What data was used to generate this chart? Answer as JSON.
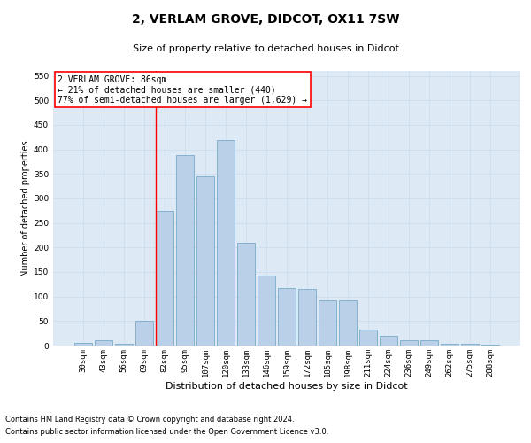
{
  "title1": "2, VERLAM GROVE, DIDCOT, OX11 7SW",
  "title2": "Size of property relative to detached houses in Didcot",
  "xlabel": "Distribution of detached houses by size in Didcot",
  "ylabel": "Number of detached properties",
  "categories": [
    "30sqm",
    "43sqm",
    "56sqm",
    "69sqm",
    "82sqm",
    "95sqm",
    "107sqm",
    "120sqm",
    "133sqm",
    "146sqm",
    "159sqm",
    "172sqm",
    "185sqm",
    "198sqm",
    "211sqm",
    "224sqm",
    "236sqm",
    "249sqm",
    "262sqm",
    "275sqm",
    "288sqm"
  ],
  "values": [
    5,
    10,
    4,
    50,
    275,
    388,
    345,
    420,
    210,
    143,
    117,
    115,
    92,
    92,
    33,
    19,
    10,
    10,
    4,
    3,
    2
  ],
  "bar_color": "#bad0e8",
  "bar_edge_color": "#7aaac8",
  "grid_color": "#d0dff0",
  "background_color": "#ddeaf6",
  "annotation_text_line1": "2 VERLAM GROVE: 86sqm",
  "annotation_text_line2": "← 21% of detached houses are smaller (440)",
  "annotation_text_line3": "77% of semi-detached houses are larger (1,629) →",
  "footer_line1": "Contains HM Land Registry data © Crown copyright and database right 2024.",
  "footer_line2": "Contains public sector information licensed under the Open Government Licence v3.0.",
  "ylim": [
    0,
    560
  ],
  "yticks": [
    0,
    50,
    100,
    150,
    200,
    250,
    300,
    350,
    400,
    450,
    500,
    550
  ],
  "red_line_category_index": 4,
  "title1_fontsize": 10,
  "title2_fontsize": 8,
  "xlabel_fontsize": 8,
  "ylabel_fontsize": 7,
  "tick_fontsize": 6.5,
  "annotation_fontsize": 7,
  "footer_fontsize": 6
}
